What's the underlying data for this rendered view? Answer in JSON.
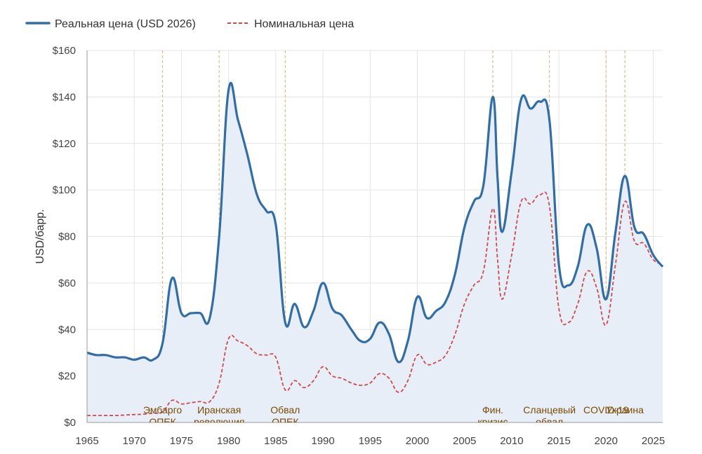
{
  "chart_data": {
    "type": "line",
    "ylabel": "USD/барр.",
    "xlabel": "",
    "xlim": [
      1965,
      2026
    ],
    "ylim": [
      0,
      160
    ],
    "x_ticks": [
      1965,
      1970,
      1975,
      1980,
      1985,
      1990,
      1995,
      2000,
      2005,
      2010,
      2015,
      2020,
      2025
    ],
    "y_ticks": [
      0,
      20,
      40,
      60,
      80,
      100,
      120,
      140,
      160
    ],
    "y_tick_labels": [
      "$0",
      "$20",
      "$40",
      "$60",
      "$80",
      "$100",
      "$120",
      "$140",
      "$160"
    ],
    "grid": true,
    "legend_position": "top-left",
    "series": [
      {
        "name": "Реальная цена (USD 2026)",
        "color": "#2f6ea8",
        "style": "solid",
        "fill": "#e8eef8",
        "points": [
          [
            1965,
            30
          ],
          [
            1966,
            29
          ],
          [
            1967,
            29
          ],
          [
            1968,
            28
          ],
          [
            1969,
            28
          ],
          [
            1970,
            27
          ],
          [
            1971,
            28
          ],
          [
            1972,
            27
          ],
          [
            1973,
            34
          ],
          [
            1974,
            62
          ],
          [
            1975,
            47
          ],
          [
            1976,
            47
          ],
          [
            1977,
            47
          ],
          [
            1978,
            45
          ],
          [
            1979,
            80
          ],
          [
            1980,
            143
          ],
          [
            1981,
            130
          ],
          [
            1982,
            115
          ],
          [
            1983,
            98
          ],
          [
            1984,
            91
          ],
          [
            1985,
            85
          ],
          [
            1986,
            43
          ],
          [
            1987,
            51
          ],
          [
            1988,
            41
          ],
          [
            1989,
            48
          ],
          [
            1990,
            60
          ],
          [
            1991,
            49
          ],
          [
            1992,
            46
          ],
          [
            1993,
            40
          ],
          [
            1994,
            35
          ],
          [
            1995,
            36
          ],
          [
            1996,
            43
          ],
          [
            1997,
            38
          ],
          [
            1998,
            26
          ],
          [
            1999,
            35
          ],
          [
            2000,
            54
          ],
          [
            2001,
            45
          ],
          [
            2002,
            48
          ],
          [
            2003,
            52
          ],
          [
            2004,
            64
          ],
          [
            2005,
            84
          ],
          [
            2006,
            95
          ],
          [
            2007,
            102
          ],
          [
            2008,
            140
          ],
          [
            2008.5,
            105
          ],
          [
            2009,
            82
          ],
          [
            2010,
            108
          ],
          [
            2011,
            139
          ],
          [
            2012,
            135
          ],
          [
            2013,
            138
          ],
          [
            2014,
            130
          ],
          [
            2015,
            68
          ],
          [
            2016,
            59
          ],
          [
            2017,
            67
          ],
          [
            2018,
            85
          ],
          [
            2019,
            75
          ],
          [
            2020,
            53
          ],
          [
            2021,
            82
          ],
          [
            2022,
            106
          ],
          [
            2023,
            84
          ],
          [
            2024,
            81
          ],
          [
            2025,
            72
          ],
          [
            2026,
            67
          ]
        ]
      },
      {
        "name": "Номинальная цена",
        "color": "#d04a4a",
        "style": "dashed",
        "points": [
          [
            1965,
            3
          ],
          [
            1966,
            3
          ],
          [
            1967,
            3
          ],
          [
            1968,
            3
          ],
          [
            1969,
            3.2
          ],
          [
            1970,
            3.4
          ],
          [
            1971,
            3.6
          ],
          [
            1972,
            4
          ],
          [
            1973,
            4.5
          ],
          [
            1974,
            9.5
          ],
          [
            1975,
            8
          ],
          [
            1976,
            8.5
          ],
          [
            1977,
            9
          ],
          [
            1978,
            9
          ],
          [
            1979,
            17
          ],
          [
            1980,
            36
          ],
          [
            1981,
            35
          ],
          [
            1982,
            33
          ],
          [
            1983,
            29.5
          ],
          [
            1984,
            29
          ],
          [
            1985,
            28
          ],
          [
            1986,
            14
          ],
          [
            1987,
            18
          ],
          [
            1988,
            15
          ],
          [
            1989,
            18
          ],
          [
            1990,
            24
          ],
          [
            1991,
            20
          ],
          [
            1992,
            19
          ],
          [
            1993,
            17
          ],
          [
            1994,
            16
          ],
          [
            1995,
            17
          ],
          [
            1996,
            21
          ],
          [
            1997,
            19
          ],
          [
            1998,
            13
          ],
          [
            1999,
            18
          ],
          [
            2000,
            29
          ],
          [
            2001,
            25
          ],
          [
            2002,
            26
          ],
          [
            2003,
            29
          ],
          [
            2004,
            38
          ],
          [
            2005,
            51
          ],
          [
            2006,
            59
          ],
          [
            2007,
            65
          ],
          [
            2008,
            92
          ],
          [
            2008.5,
            70
          ],
          [
            2009,
            53
          ],
          [
            2010,
            72
          ],
          [
            2011,
            95
          ],
          [
            2012,
            94
          ],
          [
            2013,
            98
          ],
          [
            2014,
            93
          ],
          [
            2015,
            49
          ],
          [
            2016,
            43
          ],
          [
            2017,
            51
          ],
          [
            2018,
            65
          ],
          [
            2019,
            58
          ],
          [
            2020,
            42
          ],
          [
            2021,
            68
          ],
          [
            2022,
            95
          ],
          [
            2023,
            78
          ],
          [
            2024,
            77
          ],
          [
            2025,
            70
          ],
          [
            2026,
            68
          ]
        ]
      }
    ],
    "events": [
      {
        "year": 1973,
        "line1": "Эмбарго",
        "line2": "ОПЕК"
      },
      {
        "year": 1979,
        "line1": "Иранская",
        "line2": "революция"
      },
      {
        "year": 1986,
        "line1": "Обвал",
        "line2": "ОПЕК"
      },
      {
        "year": 2008,
        "line1": "Фин.",
        "line2": "кризис"
      },
      {
        "year": 2014,
        "line1": "Сланцевый",
        "line2": "обвал"
      },
      {
        "year": 2020,
        "line1": "COVID-19",
        "line2": ""
      },
      {
        "year": 2022,
        "line1": "Украина",
        "line2": ""
      }
    ]
  }
}
